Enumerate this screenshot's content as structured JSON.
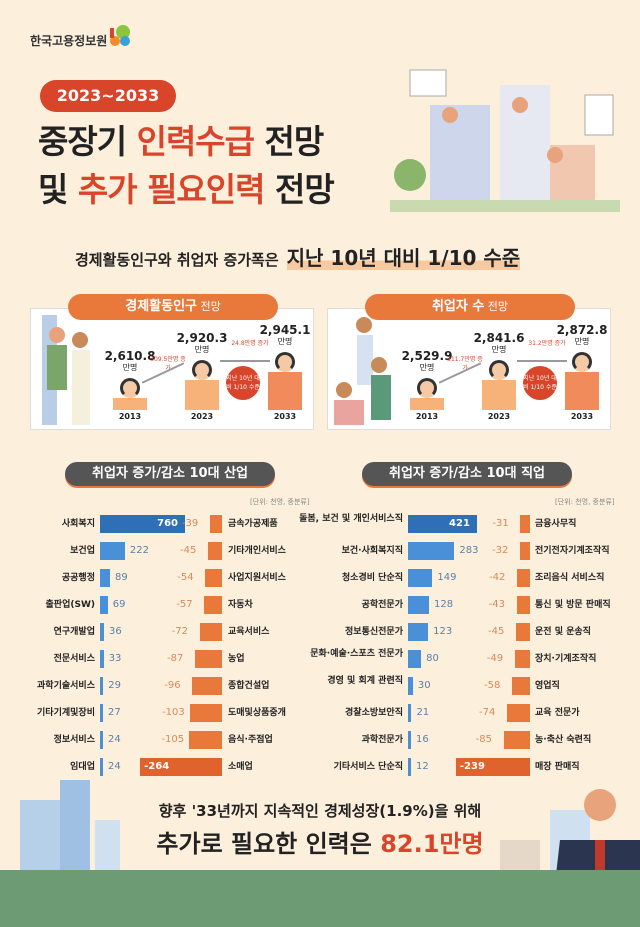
{
  "header": {
    "org": "한국고용정보원",
    "period": "2023~2033",
    "title_line1": [
      "중장기 ",
      "인력수급",
      " 전망"
    ],
    "title_line2": [
      "및 ",
      "추가 필요인력",
      " 전망"
    ],
    "subtitle": "경제활동인구와 취업자 증가폭은",
    "subtitle_highlight": "지난 10년 대비 1/10 수준"
  },
  "colors": {
    "background": "#fcefdc",
    "accent_red": "#d9452a",
    "orange": "#e8793a",
    "blue": "#4a90d9",
    "blue_top": "#2f6fb5"
  },
  "chart_data": [
    {
      "type": "bar",
      "title": "경제활동인구 전망",
      "unit": "만명",
      "categories": [
        "2013",
        "2023",
        "2033"
      ],
      "values": [
        2610.8,
        2920.3,
        2945.1
      ],
      "value_labels": [
        "2,610.8",
        "2,920.3",
        "2,945.1"
      ],
      "annotations": [
        "309.5만명 증가",
        "24.8만명 증가"
      ],
      "badge": "지난 10년 대비 1/10 수준"
    },
    {
      "type": "bar",
      "title": "취업자 수 전망",
      "unit": "만명",
      "categories": [
        "2013",
        "2023",
        "2033"
      ],
      "values": [
        2529.9,
        2841.6,
        2872.8
      ],
      "value_labels": [
        "2,529.9",
        "2,841.6",
        "2,872.8"
      ],
      "annotations": [
        "311.7만명 증가",
        "31.2만명 증가"
      ],
      "badge": "지난 10년 대비 1/10 수준"
    },
    {
      "type": "bar",
      "title": "취업자 증가/감소 10대 산업",
      "unit_note": "[단위: 천명, 중분류]",
      "increase": {
        "categories": [
          "사회복지",
          "보건업",
          "공공행정",
          "출판업(SW)",
          "연구개발업",
          "전문서비스",
          "과학기술서비스",
          "기타기계및장비",
          "정보서비스",
          "임대업"
        ],
        "values": [
          760,
          222,
          89,
          69,
          36,
          33,
          29,
          27,
          24,
          24
        ]
      },
      "decrease": {
        "categories": [
          "금속가공제품",
          "기타개인서비스",
          "사업지원서비스",
          "자동차",
          "교육서비스",
          "농업",
          "종합건설업",
          "도매및상품중개",
          "음식·주점업",
          "소매업"
        ],
        "values": [
          -39,
          -45,
          -54,
          -57,
          -72,
          -87,
          -96,
          -103,
          -105,
          -264
        ]
      }
    },
    {
      "type": "bar",
      "title": "취업자 증가/감소 10대 직업",
      "unit_note": "[단위: 천명, 중분류]",
      "increase": {
        "categories": [
          "돌봄, 보건 및 개인서비스직",
          "보건·사회복지직",
          "청소경비 단순직",
          "공학전문가",
          "정보통신전문가",
          "문화·예술·스포츠 전문가",
          "경영 및 회계 관련직",
          "경찰소방보안직",
          "과학전문가",
          "기타서비스 단순직"
        ],
        "values": [
          421,
          283,
          149,
          128,
          123,
          80,
          30,
          21,
          16,
          12
        ]
      },
      "decrease": {
        "categories": [
          "금융사무직",
          "전기전자기계조작직",
          "조리음식 서비스직",
          "통신 및 방문 판매직",
          "운전 및 운송직",
          "장치·기계조작직",
          "영업직",
          "교육 전문가",
          "농·축산 숙련직",
          "매장 판매직"
        ],
        "values": [
          -31,
          -32,
          -42,
          -43,
          -45,
          -49,
          -58,
          -74,
          -85,
          -239
        ]
      }
    }
  ],
  "panels": {
    "left_title": "경제활동인구",
    "left_suffix": " 전망",
    "right_title": "취업자 수",
    "right_suffix": " 전망",
    "unit": "만명"
  },
  "footer": {
    "line1": "향후 '33년까지 지속적인 경제성장(1.9%)을 위해",
    "line2": "추가로 필요한 인력은 ",
    "line2_highlight": "82.1만명"
  }
}
